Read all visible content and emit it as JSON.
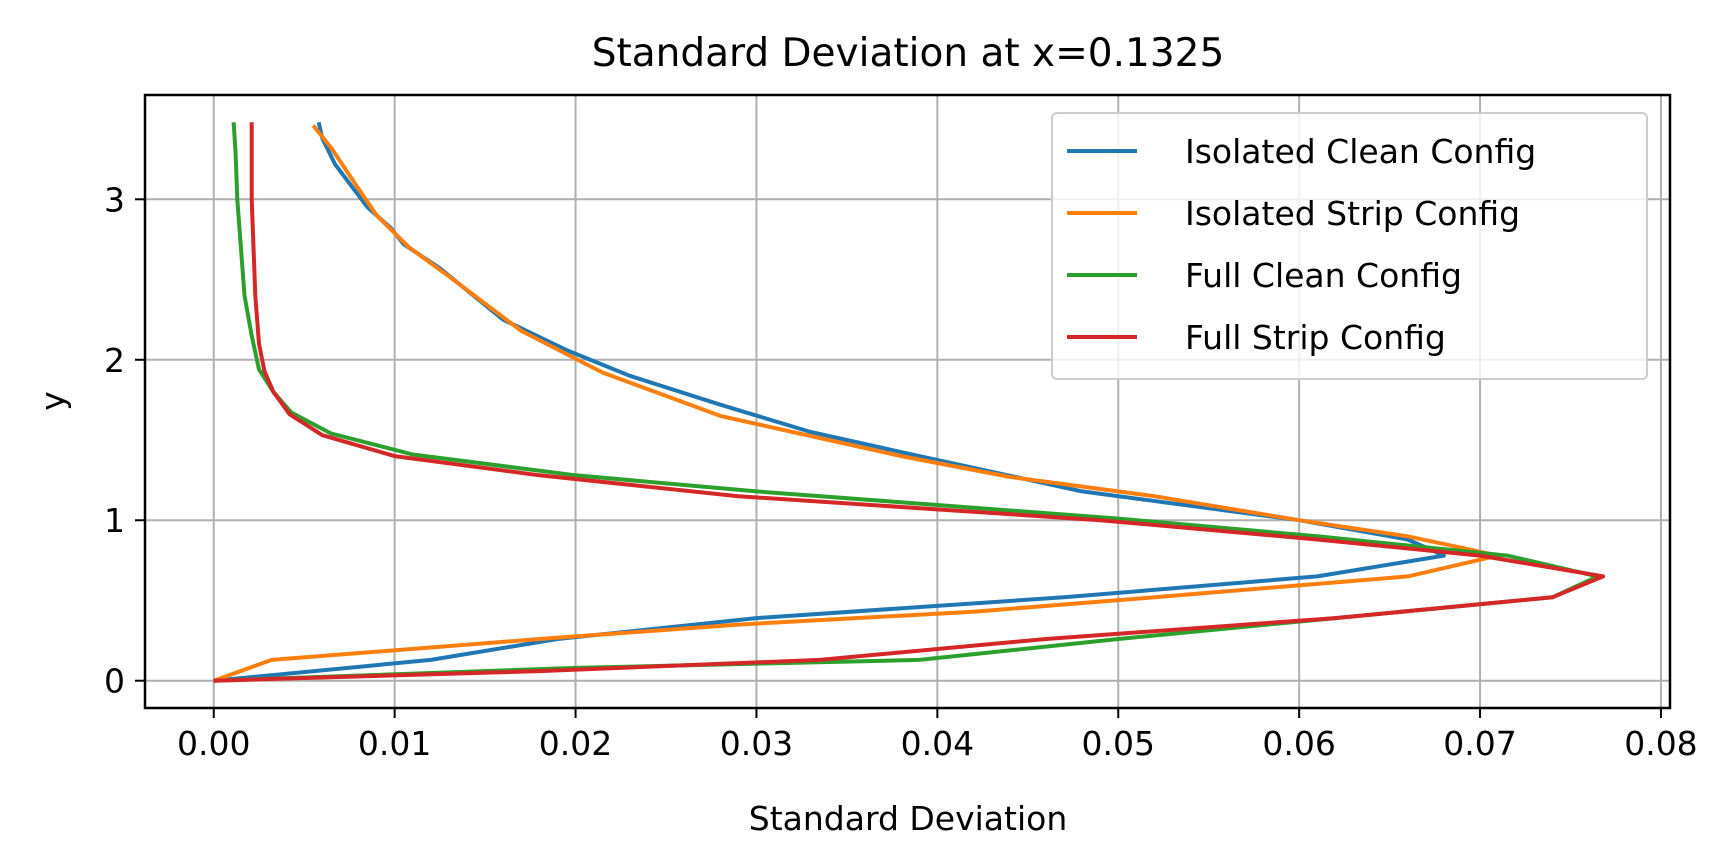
{
  "chart_data": {
    "type": "line",
    "title": "Standard Deviation at x=0.1325",
    "xlabel": "Standard Deviation",
    "ylabel": "y",
    "xlim": [
      -0.0038,
      0.0805
    ],
    "ylim": [
      -0.17,
      3.65
    ],
    "xticks": [
      0.0,
      0.01,
      0.02,
      0.03,
      0.04,
      0.05,
      0.06,
      0.07,
      0.08
    ],
    "xtick_labels": [
      "0.00",
      "0.01",
      "0.02",
      "0.03",
      "0.04",
      "0.05",
      "0.06",
      "0.07",
      "0.08"
    ],
    "yticks": [
      0,
      1,
      2,
      3
    ],
    "ytick_labels": [
      "0",
      "1",
      "2",
      "3"
    ],
    "grid": true,
    "legend_position": "top-right",
    "series": [
      {
        "name": "Isolated Clean Config",
        "color": "#1f77b4",
        "points": [
          [
            0.0,
            0.0
          ],
          [
            0.012,
            0.13
          ],
          [
            0.019,
            0.26
          ],
          [
            0.03,
            0.39
          ],
          [
            0.047,
            0.52
          ],
          [
            0.061,
            0.65
          ],
          [
            0.068,
            0.78
          ],
          [
            0.066,
            0.88
          ],
          [
            0.06,
            1.0
          ],
          [
            0.048,
            1.18
          ],
          [
            0.039,
            1.4
          ],
          [
            0.033,
            1.55
          ],
          [
            0.028,
            1.72
          ],
          [
            0.023,
            1.9
          ],
          [
            0.0195,
            2.06
          ],
          [
            0.016,
            2.25
          ],
          [
            0.0125,
            2.57
          ],
          [
            0.0105,
            2.72
          ],
          [
            0.0098,
            2.82
          ],
          [
            0.0085,
            2.95
          ],
          [
            0.0075,
            3.1
          ],
          [
            0.0067,
            3.22
          ],
          [
            0.006,
            3.38
          ],
          [
            0.0058,
            3.48
          ]
        ]
      },
      {
        "name": "Isolated Strip Config",
        "color": "#ff7f0e",
        "points": [
          [
            0.0,
            0.0
          ],
          [
            0.0032,
            0.13
          ],
          [
            0.018,
            0.26
          ],
          [
            0.029,
            0.35
          ],
          [
            0.042,
            0.43
          ],
          [
            0.052,
            0.52
          ],
          [
            0.066,
            0.65
          ],
          [
            0.071,
            0.78
          ],
          [
            0.066,
            0.9
          ],
          [
            0.06,
            1.0
          ],
          [
            0.052,
            1.15
          ],
          [
            0.044,
            1.27
          ],
          [
            0.038,
            1.4
          ],
          [
            0.032,
            1.55
          ],
          [
            0.028,
            1.65
          ],
          [
            0.0215,
            1.92
          ],
          [
            0.017,
            2.18
          ],
          [
            0.013,
            2.52
          ],
          [
            0.0108,
            2.7
          ],
          [
            0.009,
            2.9
          ],
          [
            0.0078,
            3.1
          ],
          [
            0.0065,
            3.32
          ],
          [
            0.0055,
            3.46
          ]
        ]
      },
      {
        "name": "Full Clean Config",
        "color": "#2ca02c",
        "points": [
          [
            0.0,
            0.0
          ],
          [
            0.02,
            0.08
          ],
          [
            0.039,
            0.13
          ],
          [
            0.05,
            0.26
          ],
          [
            0.062,
            0.39
          ],
          [
            0.074,
            0.52
          ],
          [
            0.0765,
            0.65
          ],
          [
            0.0715,
            0.78
          ],
          [
            0.061,
            0.9
          ],
          [
            0.05,
            1.01
          ],
          [
            0.03,
            1.18
          ],
          [
            0.02,
            1.28
          ],
          [
            0.011,
            1.41
          ],
          [
            0.0065,
            1.54
          ],
          [
            0.0043,
            1.67
          ],
          [
            0.0033,
            1.8
          ],
          [
            0.0025,
            1.94
          ],
          [
            0.0021,
            2.15
          ],
          [
            0.0017,
            2.4
          ],
          [
            0.0015,
            2.7
          ],
          [
            0.0013,
            3.0
          ],
          [
            0.0012,
            3.3
          ],
          [
            0.0011,
            3.48
          ]
        ]
      },
      {
        "name": "Full Strip Config",
        "color": "#d62728",
        "points": [
          [
            0.0,
            0.0
          ],
          [
            0.018,
            0.06
          ],
          [
            0.0335,
            0.13
          ],
          [
            0.046,
            0.26
          ],
          [
            0.062,
            0.39
          ],
          [
            0.074,
            0.52
          ],
          [
            0.0768,
            0.65
          ],
          [
            0.07,
            0.78
          ],
          [
            0.061,
            0.88
          ],
          [
            0.049,
            1.0
          ],
          [
            0.029,
            1.15
          ],
          [
            0.018,
            1.28
          ],
          [
            0.01,
            1.4
          ],
          [
            0.006,
            1.53
          ],
          [
            0.0042,
            1.66
          ],
          [
            0.0033,
            1.8
          ],
          [
            0.0028,
            1.93
          ],
          [
            0.0025,
            2.1
          ],
          [
            0.0023,
            2.4
          ],
          [
            0.0022,
            2.7
          ],
          [
            0.0021,
            3.0
          ],
          [
            0.0021,
            3.3
          ],
          [
            0.0021,
            3.48
          ]
        ]
      }
    ]
  }
}
